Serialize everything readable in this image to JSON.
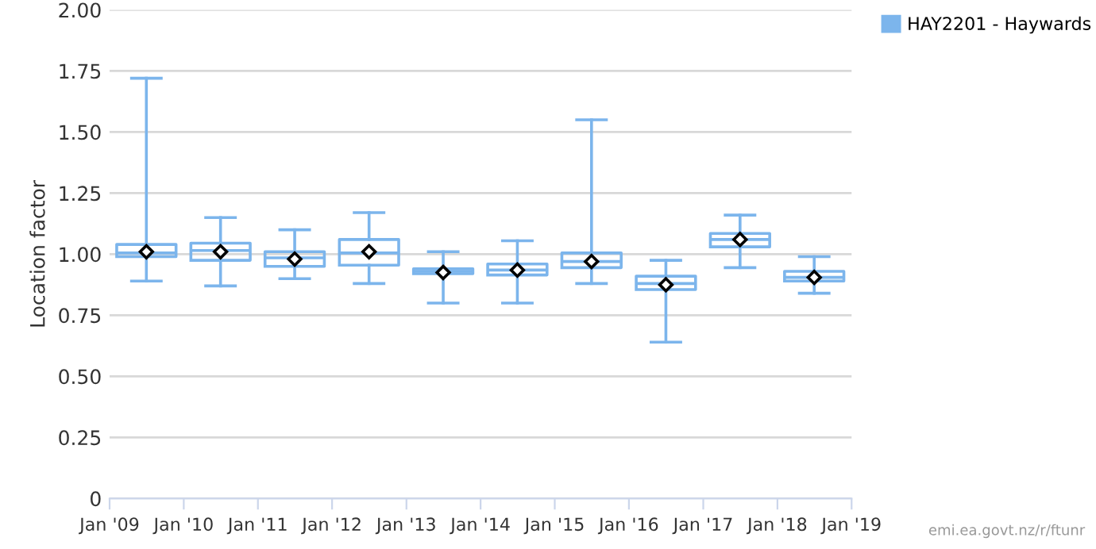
{
  "chart_data": {
    "type": "box",
    "ylabel": "Location factor",
    "x": [
      "2009-07",
      "2010-07",
      "2011-07",
      "2012-07",
      "2013-07",
      "2014-07",
      "2015-07",
      "2016-07",
      "2017-07",
      "2018-07"
    ],
    "series": [
      {
        "name": "HAY2201 - Haywards",
        "color": "#7cb5ec",
        "boxes": [
          {
            "low": 0.89,
            "q1": 0.99,
            "median": 1.005,
            "q3": 1.04,
            "high": 1.72,
            "mean": 1.01
          },
          {
            "low": 0.87,
            "q1": 0.975,
            "median": 1.015,
            "q3": 1.045,
            "high": 1.15,
            "mean": 1.01
          },
          {
            "low": 0.9,
            "q1": 0.95,
            "median": 0.985,
            "q3": 1.01,
            "high": 1.1,
            "mean": 0.98
          },
          {
            "low": 0.88,
            "q1": 0.955,
            "median": 1.005,
            "q3": 1.06,
            "high": 1.17,
            "mean": 1.01
          },
          {
            "low": 0.8,
            "q1": 0.92,
            "median": 0.93,
            "q3": 0.94,
            "high": 1.01,
            "mean": 0.925
          },
          {
            "low": 0.8,
            "q1": 0.915,
            "median": 0.935,
            "q3": 0.96,
            "high": 1.055,
            "mean": 0.935
          },
          {
            "low": 0.88,
            "q1": 0.945,
            "median": 0.97,
            "q3": 1.005,
            "high": 1.55,
            "mean": 0.97
          },
          {
            "low": 0.64,
            "q1": 0.855,
            "median": 0.88,
            "q3": 0.91,
            "high": 0.975,
            "mean": 0.875
          },
          {
            "low": 0.945,
            "q1": 1.03,
            "median": 1.06,
            "q3": 1.085,
            "high": 1.16,
            "mean": 1.06
          },
          {
            "low": 0.84,
            "q1": 0.89,
            "median": 0.905,
            "q3": 0.93,
            "high": 0.99,
            "mean": 0.905
          }
        ]
      }
    ],
    "xlim": [
      "2009-01",
      "2019-01"
    ],
    "xticks": [
      {
        "value": "2009-01",
        "label": "Jan '09"
      },
      {
        "value": "2010-01",
        "label": "Jan '10"
      },
      {
        "value": "2011-01",
        "label": "Jan '11"
      },
      {
        "value": "2012-01",
        "label": "Jan '12"
      },
      {
        "value": "2013-01",
        "label": "Jan '13"
      },
      {
        "value": "2014-01",
        "label": "Jan '14"
      },
      {
        "value": "2015-01",
        "label": "Jan '15"
      },
      {
        "value": "2016-01",
        "label": "Jan '16"
      },
      {
        "value": "2017-01",
        "label": "Jan '17"
      },
      {
        "value": "2018-01",
        "label": "Jan '18"
      },
      {
        "value": "2019-01",
        "label": "Jan '19"
      }
    ],
    "ylim": [
      0,
      2
    ],
    "yticks": [
      0,
      {
        "value": 0.25,
        "label": "0.25"
      },
      {
        "value": 0.5,
        "label": "0.50"
      },
      {
        "value": 0.75,
        "label": "0.75"
      },
      {
        "value": 1,
        "label": "1.00"
      },
      {
        "value": 1.25,
        "label": "1.25"
      },
      {
        "value": 1.5,
        "label": "1.50"
      },
      {
        "value": 1.75,
        "label": "1.75"
      },
      {
        "value": 2,
        "label": "2.00"
      }
    ],
    "grid": "y",
    "legend": "top right",
    "marker": "diamond",
    "annotations": [
      "emi.ea.govt.nz/r/ftunr"
    ]
  }
}
